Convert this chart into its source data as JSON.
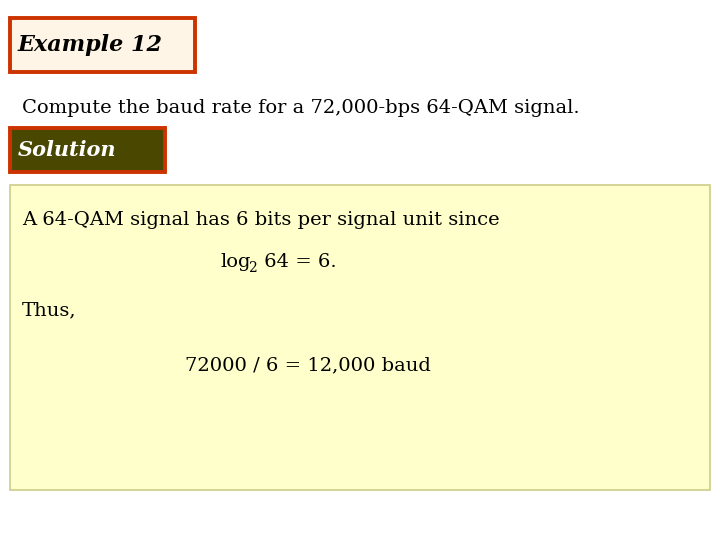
{
  "background_color": "#ffffff",
  "title_text": "Example 12",
  "title_box_facecolor": "#fff5e6",
  "title_box_edgecolor": "#cc3300",
  "title_fontsize": 16,
  "problem_text": "Compute the baud rate for a 72,000-bps 64-QAM signal.",
  "problem_fontsize": 14,
  "solution_label": "Solution",
  "solution_box_facecolor": "#4a4800",
  "solution_box_edgecolor": "#cc3300",
  "solution_label_color": "#ffffff",
  "solution_label_fontsize": 15,
  "solution_box_facecolor_content": "#ffffcc",
  "solution_box_edgecolor_content": "#cccc88",
  "line1": "A 64-QAM signal has 6 bits per signal unit since",
  "line2_pre": "log",
  "line2_sub": "2",
  "line2_post": " 64 = 6.",
  "line3": "Thus,",
  "line4": "72000 / 6 = 12,000 baud",
  "content_fontsize": 14,
  "family": "serif"
}
